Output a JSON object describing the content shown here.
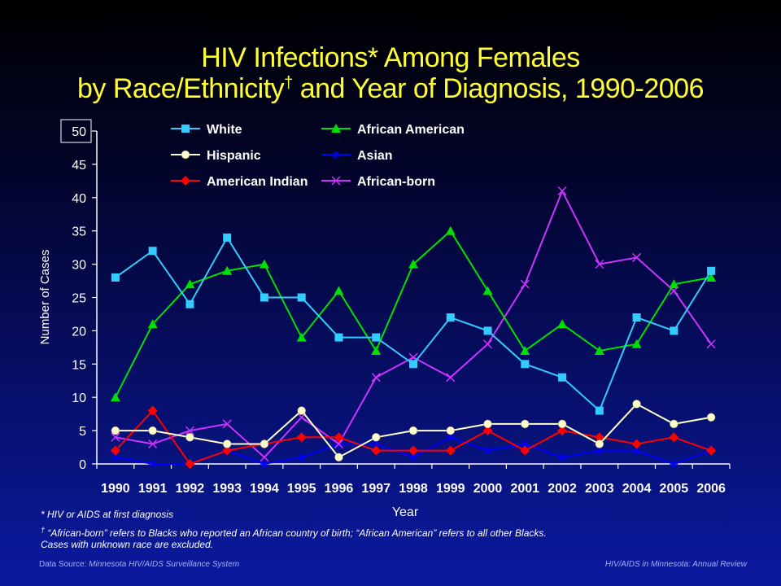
{
  "title": {
    "line1": "HIV Infections* Among Females",
    "line2_a": "by Race/Ethnicity",
    "line2_dagger": "†",
    "line2_b": " and Year of Diagnosis, 1990-2006"
  },
  "footnotes": {
    "note1": "* HIV or AIDS at first diagnosis",
    "note2_mark": "†",
    "note2_text": " “African-born” refers to Blacks who reported  an African country of birth; “African American” refers to all other Blacks.",
    "note3": "Cases with unknown race are excluded."
  },
  "source": {
    "label": "Data Source: ",
    "name": "Minnesota HIV/AIDS Surveillance  System",
    "right": "HIV/AIDS in Minnesota: Annual Review"
  },
  "colors": {
    "white": "#33ccff",
    "african_american": "#00e000",
    "hispanic": "#ffffcc",
    "asian": "#0000ff",
    "american_indian": "#ff0000",
    "african_born": "#cc33ff"
  },
  "chart_data": {
    "type": "line",
    "xlabel": "Year",
    "ylabel": "Number of Cases",
    "ylim": [
      0,
      50
    ],
    "y_ticks": [
      0,
      5,
      10,
      15,
      20,
      25,
      30,
      35,
      40,
      45,
      50
    ],
    "grid": false,
    "legend_position": "top",
    "x": [
      "1990",
      "1991",
      "1992",
      "1993",
      "1994",
      "1995",
      "1996",
      "1997",
      "1998",
      "1999",
      "2000",
      "2001",
      "2002",
      "2003",
      "2004",
      "2005",
      "2006"
    ],
    "series": [
      {
        "name": "White",
        "color": "#33ccff",
        "marker": "square",
        "values": [
          28,
          32,
          24,
          34,
          25,
          25,
          19,
          19,
          15,
          22,
          20,
          15,
          13,
          8,
          22,
          20,
          29
        ]
      },
      {
        "name": "African American",
        "color": "#00e000",
        "marker": "triangle",
        "values": [
          10,
          21,
          27,
          29,
          30,
          19,
          26,
          17,
          30,
          35,
          26,
          17,
          21,
          17,
          18,
          27,
          28
        ]
      },
      {
        "name": "Hispanic",
        "color": "#ffffcc",
        "marker": "circle",
        "values": [
          5,
          5,
          4,
          3,
          3,
          8,
          1,
          4,
          5,
          5,
          6,
          6,
          6,
          3,
          9,
          6,
          7
        ]
      },
      {
        "name": "Asian",
        "color": "#0000ff",
        "marker": "star",
        "values": [
          1,
          0,
          0,
          2,
          0,
          1,
          3,
          3,
          1,
          4,
          2,
          3,
          1,
          2,
          2,
          0,
          2
        ]
      },
      {
        "name": "American Indian",
        "color": "#ff0000",
        "marker": "diamond",
        "values": [
          2,
          8,
          0,
          2,
          3,
          4,
          4,
          2,
          2,
          2,
          5,
          2,
          5,
          4,
          3,
          4,
          2
        ]
      },
      {
        "name": "African-born",
        "color": "#cc33ff",
        "marker": "x",
        "values": [
          4,
          3,
          5,
          6,
          1,
          7,
          3,
          13,
          16,
          13,
          18,
          27,
          41,
          30,
          31,
          26,
          18
        ]
      }
    ]
  }
}
